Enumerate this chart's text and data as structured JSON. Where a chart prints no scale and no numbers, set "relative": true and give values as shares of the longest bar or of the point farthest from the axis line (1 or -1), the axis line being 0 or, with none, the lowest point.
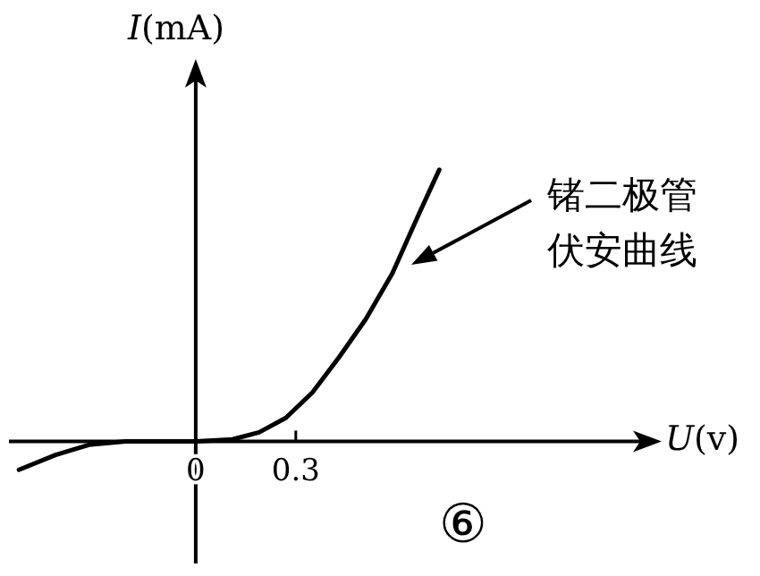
{
  "chart_data": {
    "type": "line",
    "relative": true,
    "xlabel": "U(v)",
    "ylabel": "I(mA)",
    "x": [
      -0.53,
      -0.42,
      -0.32,
      -0.21,
      0,
      0.11,
      0.19,
      0.27,
      0.35,
      0.43,
      0.51,
      0.59,
      0.67,
      0.73
    ],
    "series": [
      {
        "color": "#000000",
        "values": [
          -0.105,
          -0.05,
          -0.013,
          0,
          0,
          0.007,
          0.033,
          0.086,
          0.18,
          0.31,
          0.45,
          0.62,
          0.84,
          1
        ]
      }
    ],
    "xlim": [
      -0.56,
      1.37
    ],
    "xticks": [
      0,
      0.3
    ],
    "annotations": [
      "锗二极管伏安曲线",
      "⑥"
    ],
    "marker": "none",
    "line_style": "solid"
  }
}
